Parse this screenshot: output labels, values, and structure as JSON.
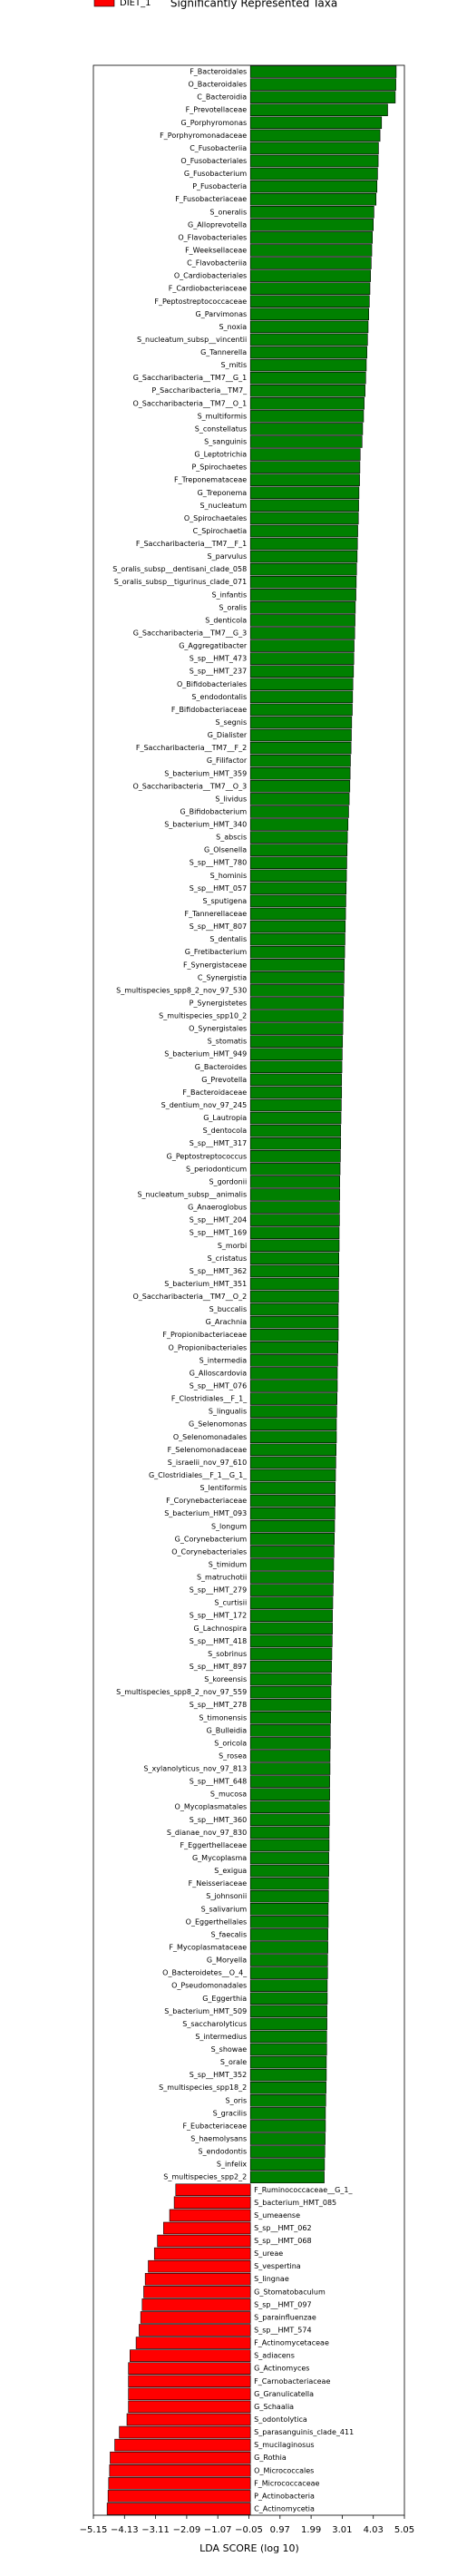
{
  "chart_data": {
    "type": "barh",
    "title": "Significantly Represented Taxa",
    "xlabel": "LDA SCORE (log 10)",
    "categories": [
      "F_Bacteroidales",
      "O_Bacteroidales",
      "C_Bacteroidia",
      "F_Prevotellaceae",
      "G_Porphyromonas",
      "F_Porphyromonadaceae",
      "C_Fusobacteriia",
      "O_Fusobacteriales",
      "G_Fusobacterium",
      "P_Fusobacteria",
      "F_Fusobacteriaceae",
      "S_oneralis",
      "G_Alloprevotella",
      "O_Flavobacteriales",
      "F_Weeksellaceae",
      "C_Flavobacteriia",
      "O_Cardiobacteriales",
      "F_Cardiobacteriaceae",
      "F_Peptostreptococcaceae",
      "G_Parvimonas",
      "S_noxia",
      "S_nucleatum_subsp__vincentii",
      "G_Tannerella",
      "S_mitis",
      "G_Saccharibacteria__TM7__G_1",
      "P_Saccharibacteria__TM7_",
      "O_Saccharibacteria__TM7__O_1",
      "S_multiformis",
      "S_constellatus",
      "S_sanguinis",
      "G_Leptotrichia",
      "P_Spirochaetes",
      "F_Treponemataceae",
      "G_Treponema",
      "S_nucleatum",
      "O_Spirochaetales",
      "C_Spirochaetia",
      "F_Saccharibacteria__TM7__F_1",
      "S_parvulus",
      "S_oralis_subsp__dentisani_clade_058",
      "S_oralis_subsp__tigurinus_clade_071",
      "S_infantis",
      "S_oralis",
      "S_denticola",
      "G_Saccharibacteria__TM7__G_3",
      "G_Aggregatibacter",
      "S_sp__HMT_473",
      "S_sp__HMT_237",
      "O_Bifidobacteriales",
      "S_endodontalis",
      "F_Bifidobacteriaceae",
      "S_segnis",
      "G_Dialister",
      "F_Saccharibacteria__TM7__F_2",
      "G_Filifactor",
      "S_bacterium_HMT_359",
      "O_Saccharibacteria__TM7__O_3",
      "S_lividus",
      "G_Bifidobacterium",
      "S_bacterium_HMT_340",
      "S_abscis",
      "G_Olsenella",
      "S_sp__HMT_780",
      "S_hominis",
      "S_sp__HMT_057",
      "S_sputigena",
      "F_Tannerellaceae",
      "S_sp__HMT_807",
      "S_dentalis",
      "G_Fretibacterium",
      "F_Synergistaceae",
      "C_Synergistia",
      "S_multispecies_spp8_2_nov_97_530",
      "P_Synergistetes",
      "S_multispecies_spp10_2",
      "O_Synergistales",
      "S_stomatis",
      "S_bacterium_HMT_949",
      "G_Bacteroides",
      "G_Prevotella",
      "F_Bacteroidaceae",
      "S_dentium_nov_97_245",
      "G_Lautropia",
      "S_dentocola",
      "S_sp__HMT_317",
      "G_Peptostreptococcus",
      "S_periodonticum",
      "S_gordonii",
      "S_nucleatum_subsp__animalis",
      "G_Anaeroglobus",
      "S_sp__HMT_204",
      "S_sp__HMT_169",
      "S_morbi",
      "S_cristatus",
      "S_sp__HMT_362",
      "S_bacterium_HMT_351",
      "O_Saccharibacteria__TM7__O_2",
      "S_buccalis",
      "G_Arachnia",
      "F_Propionibacteriaceae",
      "O_Propionibacteriales",
      "S_intermedia",
      "G_Alloscardovia",
      "S_sp__HMT_076",
      "F_Clostridiales__F_1_",
      "S_lingualis",
      "G_Selenomonas",
      "O_Selenomonadales",
      "F_Selenomonadaceae",
      "S_israelii_nov_97_610",
      "G_Clostridiales__F_1__G_1_",
      "S_lentiformis",
      "F_Corynebacteriaceae",
      "S_bacterium_HMT_093",
      "S_longum",
      "G_Corynebacterium",
      "O_Corynebacteriales",
      "S_timidum",
      "S_matruchotii",
      "S_sp__HMT_279",
      "S_curtisii",
      "S_sp__HMT_172",
      "G_Lachnospira",
      "S_sp__HMT_418",
      "S_sobrinus",
      "S_sp__HMT_897",
      "S_koreensis",
      "S_multispecies_spp8_2_nov_97_559",
      "S_sp__HMT_278",
      "S_timonensis",
      "G_Bulleidia",
      "S_oricola",
      "S_rosea",
      "S_xylanolyticus_nov_97_813",
      "S_sp__HMT_648",
      "S_mucosa",
      "O_Mycoplasmatales",
      "S_sp__HMT_360",
      "S_dianae_nov_97_830",
      "F_Eggerthellaceae",
      "G_Mycoplasma",
      "S_exigua",
      "F_Neisseriaceae",
      "S_johnsonii",
      "S_salivarium",
      "O_Eggerthellales",
      "S_faecalis",
      "F_Mycoplasmataceae",
      "G_Moryella",
      "O_Bacteroidetes__O_4_",
      "O_Pseudomonadales",
      "G_Eggerthia",
      "S_bacterium_HMT_509",
      "S_saccharolyticus",
      "S_intermedius",
      "S_showae",
      "S_orale",
      "S_sp__HMT_352",
      "S_multispecies_spp18_2",
      "S_oris",
      "S_gracilis",
      "F_Eubacteriaceae",
      "S_haemolysans",
      "S_endodontis",
      "S_infelix",
      "S_multispecies_spp2_2",
      "F_Ruminococcaceae__G_1_",
      "S_bacterium_HMT_085",
      "S_umeaense",
      "S_sp__HMT_062",
      "S_sp__HMT_068",
      "S_ureae",
      "S_vespertina",
      "S_lingnae",
      "G_Stomatobaculum",
      "S_sp__HMT_097",
      "S_parainfluenzae",
      "S_sp__HMT_574",
      "F_Actinomycetaceae",
      "S_adiacens",
      "G_Actinomyces",
      "F_Carnobacteriaceae",
      "G_Granulicatella",
      "G_Schaalia",
      "S_odontolytica",
      "S_parasanguinis_clade_411",
      "S_mucilaginosus",
      "G_Rothia",
      "O_Micrococcales",
      "F_Micrococcaceae",
      "P_Actinobacteria",
      "C_Actinomycetia"
    ],
    "series": [
      {
        "name": "DIET_1",
        "color": "#ff0000",
        "values": [
          null,
          null,
          null,
          null,
          null,
          null,
          null,
          null,
          null,
          null,
          null,
          null,
          null,
          null,
          null,
          null,
          null,
          null,
          null,
          null,
          null,
          null,
          null,
          null,
          null,
          null,
          null,
          null,
          null,
          null,
          null,
          null,
          null,
          null,
          null,
          null,
          null,
          null,
          null,
          null,
          null,
          null,
          null,
          null,
          null,
          null,
          null,
          null,
          null,
          null,
          null,
          null,
          null,
          null,
          null,
          null,
          null,
          null,
          null,
          null,
          null,
          null,
          null,
          null,
          null,
          null,
          null,
          null,
          null,
          null,
          null,
          null,
          null,
          null,
          null,
          null,
          null,
          null,
          null,
          null,
          null,
          null,
          null,
          null,
          null,
          null,
          null,
          null,
          null,
          null,
          null,
          null,
          null,
          null,
          null,
          null,
          null,
          null,
          null,
          null,
          null,
          null,
          null,
          null,
          null,
          null,
          null,
          null,
          null,
          null,
          null,
          null,
          null,
          null,
          null,
          null,
          null,
          null,
          null,
          null,
          null,
          null,
          null,
          null,
          null,
          null,
          null,
          null,
          null,
          null,
          null,
          null,
          null,
          null,
          null,
          null,
          null,
          null,
          null,
          null,
          null,
          null,
          null,
          null,
          null,
          null,
          null,
          null,
          null,
          null,
          null,
          null,
          null,
          null,
          null,
          null,
          null,
          null,
          null,
          null,
          null,
          null,
          null,
          null,
          null,
          null,
          -2.45,
          -2.5,
          -2.65,
          -2.85,
          -3.05,
          -3.15,
          -3.35,
          -3.45,
          -3.5,
          -3.55,
          -3.6,
          -3.65,
          -3.75,
          -3.95,
          -4.0,
          -4.0,
          -4.0,
          -4.0,
          -4.05,
          -4.3,
          -4.45,
          -4.6,
          -4.62,
          -4.65,
          -4.67,
          -4.7
        ]
      },
      {
        "color": "#008000",
        "values": [
          4.78,
          4.77,
          4.75,
          4.5,
          4.3,
          4.25,
          4.2,
          4.19,
          4.17,
          4.15,
          4.12,
          4.05,
          4.03,
          4.0,
          3.98,
          3.96,
          3.94,
          3.92,
          3.9,
          3.88,
          3.86,
          3.84,
          3.82,
          3.8,
          3.78,
          3.76,
          3.73,
          3.71,
          3.68,
          3.66,
          3.6,
          3.59,
          3.58,
          3.56,
          3.55,
          3.54,
          3.52,
          3.51,
          3.5,
          3.48,
          3.47,
          3.46,
          3.44,
          3.43,
          3.42,
          3.4,
          3.39,
          3.38,
          3.36,
          3.35,
          3.34,
          3.32,
          3.31,
          3.3,
          3.28,
          3.27,
          3.26,
          3.24,
          3.22,
          3.2,
          3.18,
          3.17,
          3.16,
          3.15,
          3.14,
          3.13,
          3.12,
          3.11,
          3.1,
          3.09,
          3.08,
          3.07,
          3.06,
          3.05,
          3.04,
          3.03,
          3.02,
          3.01,
          3.0,
          2.99,
          2.99,
          2.98,
          2.97,
          2.96,
          2.96,
          2.95,
          2.94,
          2.93,
          2.93,
          2.92,
          2.92,
          2.91,
          2.91,
          2.9,
          2.9,
          2.89,
          2.89,
          2.88,
          2.88,
          2.88,
          2.87,
          2.86,
          2.85,
          2.85,
          2.84,
          2.83,
          2.82,
          2.82,
          2.81,
          2.8,
          2.79,
          2.78,
          2.78,
          2.77,
          2.76,
          2.75,
          2.74,
          2.73,
          2.72,
          2.71,
          2.7,
          2.69,
          2.69,
          2.68,
          2.67,
          2.66,
          2.65,
          2.64,
          2.64,
          2.63,
          2.62,
          2.62,
          2.61,
          2.61,
          2.6,
          2.6,
          2.59,
          2.59,
          2.58,
          2.58,
          2.57,
          2.57,
          2.56,
          2.56,
          2.55,
          2.55,
          2.54,
          2.54,
          2.53,
          2.53,
          2.52,
          2.52,
          2.51,
          2.51,
          2.5,
          2.5,
          2.49,
          2.49,
          2.48,
          2.47,
          2.46,
          2.46,
          2.45,
          2.44,
          2.43,
          2.42,
          null,
          null,
          null,
          null,
          null,
          null,
          null,
          null,
          null,
          null,
          null,
          null,
          null,
          null,
          null,
          null,
          null,
          null,
          null,
          null,
          null,
          null,
          null,
          null,
          null,
          null
        ]
      }
    ],
    "xlim": [
      -5.15,
      5.05
    ],
    "xticks": [
      {
        "value": -5.15,
        "label": "−5.15"
      },
      {
        "value": -4.13,
        "label": "−4.13"
      },
      {
        "value": -3.11,
        "label": "−3.11"
      },
      {
        "value": -2.09,
        "label": "−2.09"
      },
      {
        "value": -1.07,
        "label": "−1.07"
      },
      {
        "value": -0.05,
        "label": "−0.05"
      },
      0.97,
      1.99,
      3.01,
      4.03,
      5.05
    ],
    "grid": false
  }
}
